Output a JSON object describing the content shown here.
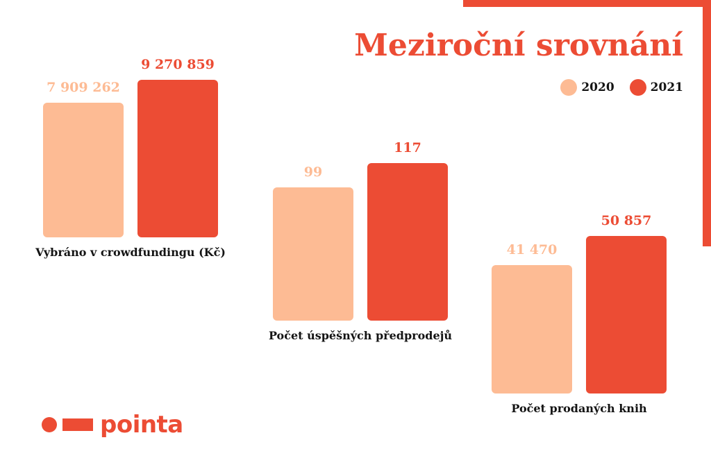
{
  "colors": {
    "series_2020": "#fdbb94",
    "series_2021": "#ec4c34",
    "text_dark": "#141414",
    "brand": "#ec4c34"
  },
  "logo": {
    "text": "pointa"
  },
  "chart_data": {
    "type": "bar",
    "title": "Meziroční srovnání",
    "legend_position": "top-right",
    "grid": false,
    "series": [
      {
        "name": "2020",
        "color": "#fdbb94",
        "values": [
          7909262,
          99,
          41470
        ],
        "value_labels": [
          "7 909 262",
          "99",
          "41 470"
        ]
      },
      {
        "name": "2021",
        "color": "#ec4c34",
        "values": [
          9270859,
          117,
          50857
        ],
        "value_labels": [
          "9 270 859",
          "117",
          "50 857"
        ]
      }
    ],
    "groups": [
      {
        "label": "Vybráno v crowdfundingu (Kč)"
      },
      {
        "label": "Počet úspěšných předprodejů"
      },
      {
        "label": "Počet prodaných knih"
      }
    ]
  }
}
